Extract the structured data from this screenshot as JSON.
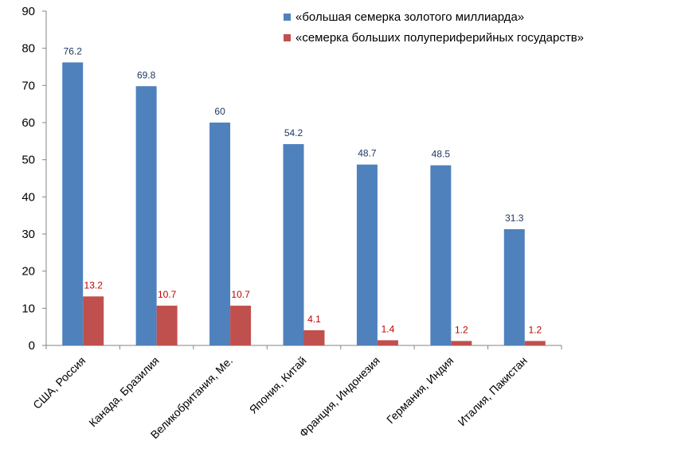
{
  "chart_data": {
    "type": "bar",
    "categories": [
      "США, Россия",
      "Канада, Бразилия",
      "Великобритания, Ме.",
      "Япония, Китай",
      "Франция, Индонезия",
      "Германия, Индия",
      "Италия, Пакистан"
    ],
    "series": [
      {
        "name": "«большая семерка золотого миллиарда»",
        "color": "#4f81bd",
        "label_color": "#1f3864",
        "values": [
          76.2,
          69.8,
          60,
          54.2,
          48.7,
          48.5,
          31.3
        ]
      },
      {
        "name": "«семерка больших полупериферийных государств»",
        "color": "#c0504d",
        "label_color": "#c00000",
        "values": [
          13.2,
          10.7,
          10.7,
          4.1,
          1.4,
          1.2,
          1.2
        ]
      }
    ],
    "ylim": [
      0,
      90
    ],
    "yticks": [
      0,
      10,
      20,
      30,
      40,
      50,
      60,
      70,
      80,
      90
    ],
    "grid": false,
    "legend_position": "top-right",
    "data_labels": true
  }
}
